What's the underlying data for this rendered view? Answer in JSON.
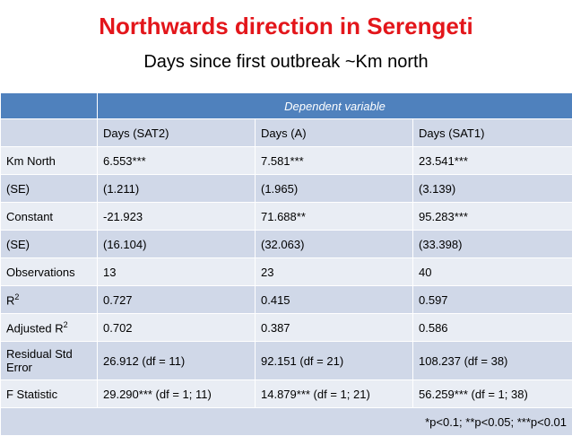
{
  "header": {
    "title": "Northwards direction in Serengeti",
    "subtitle": "Days since first outbreak ~Km north"
  },
  "table": {
    "group_header": "Dependent variable",
    "columns": [
      "Days (SAT2)",
      "Days (A)",
      "Days (SAT1)"
    ],
    "rows": [
      {
        "label": {
          "text": "Km North"
        },
        "cells": [
          "6.553***",
          "7.581***",
          "23.541***"
        ]
      },
      {
        "label": {
          "text": "(SE)"
        },
        "cells": [
          "(1.211)",
          "(1.965)",
          "(3.139)"
        ]
      },
      {
        "label": {
          "text": "Constant"
        },
        "cells": [
          "-21.923",
          "71.688**",
          "95.283***"
        ]
      },
      {
        "label": {
          "text": "(SE)"
        },
        "cells": [
          "(16.104)",
          "(32.063)",
          "(33.398)"
        ]
      },
      {
        "label": {
          "text": "Observations"
        },
        "cells": [
          "13",
          "23",
          "40"
        ]
      },
      {
        "label": {
          "text": "R",
          "sup": "2"
        },
        "cells": [
          "0.727",
          "0.415",
          "0.597"
        ]
      },
      {
        "label": {
          "text": "Adjusted R",
          "sup": "2"
        },
        "cells": [
          "0.702",
          "0.387",
          "0.586"
        ]
      },
      {
        "label": {
          "text": "Residual Std Error"
        },
        "cells": [
          "26.912 (df = 11)",
          "92.151 (df = 21)",
          "108.237 (df = 38)"
        ]
      },
      {
        "label": {
          "text": "F Statistic"
        },
        "cells": [
          "29.290*** (df = 1; 11)",
          "14.879*** (df = 1; 21)",
          "56.259*** (df = 1; 38)"
        ]
      }
    ],
    "footnote": "*p<0.1; **p<0.05; ***p<0.01"
  }
}
